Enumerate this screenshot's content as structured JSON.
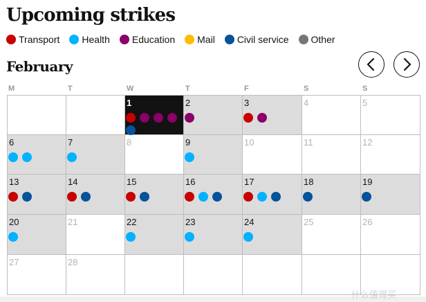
{
  "title": "Upcoming strikes",
  "legend": [
    {
      "label": "Transport",
      "color": "#c70000"
    },
    {
      "label": "Health",
      "color": "#00b2ff"
    },
    {
      "label": "Education",
      "color": "#8a0068"
    },
    {
      "label": "Mail",
      "color": "#ffbb00"
    },
    {
      "label": "Civil service",
      "color": "#05539a"
    },
    {
      "label": "Other",
      "color": "#767676"
    }
  ],
  "colors": {
    "transport": "#c70000",
    "health": "#00b2ff",
    "education": "#8a0068",
    "mail": "#ffbb00",
    "civil": "#05539a",
    "other": "#767676"
  },
  "calendar": {
    "month": "February",
    "prev_icon": "chevron-left-icon",
    "next_icon": "chevron-right-icon",
    "weekdays": [
      "M",
      "T",
      "W",
      "T",
      "F",
      "S",
      "S"
    ],
    "weeks": [
      [
        {
          "day": "",
          "faded": false,
          "today": false,
          "strikes": []
        },
        {
          "day": "",
          "faded": false,
          "today": false,
          "strikes": []
        },
        {
          "day": "1",
          "faded": false,
          "today": true,
          "strikes": [
            "transport",
            "education",
            "education",
            "education",
            "civil"
          ]
        },
        {
          "day": "2",
          "faded": false,
          "today": false,
          "strikes": [
            "education"
          ]
        },
        {
          "day": "3",
          "faded": false,
          "today": false,
          "strikes": [
            "transport",
            "education"
          ]
        },
        {
          "day": "4",
          "faded": true,
          "today": false,
          "strikes": []
        },
        {
          "day": "5",
          "faded": true,
          "today": false,
          "strikes": []
        }
      ],
      [
        {
          "day": "6",
          "faded": false,
          "today": false,
          "strikes": [
            "health",
            "health"
          ]
        },
        {
          "day": "7",
          "faded": false,
          "today": false,
          "strikes": [
            "health"
          ]
        },
        {
          "day": "8",
          "faded": true,
          "today": false,
          "strikes": []
        },
        {
          "day": "9",
          "faded": false,
          "today": false,
          "strikes": [
            "health"
          ]
        },
        {
          "day": "10",
          "faded": true,
          "today": false,
          "strikes": []
        },
        {
          "day": "11",
          "faded": true,
          "today": false,
          "strikes": []
        },
        {
          "day": "12",
          "faded": true,
          "today": false,
          "strikes": []
        }
      ],
      [
        {
          "day": "13",
          "faded": false,
          "today": false,
          "strikes": [
            "transport",
            "civil"
          ]
        },
        {
          "day": "14",
          "faded": false,
          "today": false,
          "strikes": [
            "transport",
            "civil"
          ]
        },
        {
          "day": "15",
          "faded": false,
          "today": false,
          "strikes": [
            "transport",
            "civil"
          ]
        },
        {
          "day": "16",
          "faded": false,
          "today": false,
          "strikes": [
            "transport",
            "health",
            "civil"
          ]
        },
        {
          "day": "17",
          "faded": false,
          "today": false,
          "strikes": [
            "transport",
            "health",
            "civil"
          ]
        },
        {
          "day": "18",
          "faded": false,
          "today": false,
          "strikes": [
            "civil"
          ]
        },
        {
          "day": "19",
          "faded": false,
          "today": false,
          "strikes": [
            "civil"
          ]
        }
      ],
      [
        {
          "day": "20",
          "faded": false,
          "today": false,
          "strikes": [
            "health"
          ]
        },
        {
          "day": "21",
          "faded": true,
          "today": false,
          "strikes": []
        },
        {
          "day": "22",
          "faded": false,
          "today": false,
          "strikes": [
            "health"
          ]
        },
        {
          "day": "23",
          "faded": false,
          "today": false,
          "strikes": [
            "health"
          ]
        },
        {
          "day": "24",
          "faded": false,
          "today": false,
          "strikes": [
            "health"
          ]
        },
        {
          "day": "25",
          "faded": true,
          "today": false,
          "strikes": []
        },
        {
          "day": "26",
          "faded": true,
          "today": false,
          "strikes": []
        }
      ],
      [
        {
          "day": "27",
          "faded": true,
          "today": false,
          "strikes": []
        },
        {
          "day": "28",
          "faded": true,
          "today": false,
          "strikes": []
        },
        {
          "day": "",
          "faded": false,
          "today": false,
          "strikes": []
        },
        {
          "day": "",
          "faded": false,
          "today": false,
          "strikes": []
        },
        {
          "day": "",
          "faded": false,
          "today": false,
          "strikes": []
        },
        {
          "day": "",
          "faded": false,
          "today": false,
          "strikes": []
        },
        {
          "day": "",
          "faded": false,
          "today": false,
          "strikes": []
        }
      ]
    ]
  },
  "watermark": "什么值得买"
}
